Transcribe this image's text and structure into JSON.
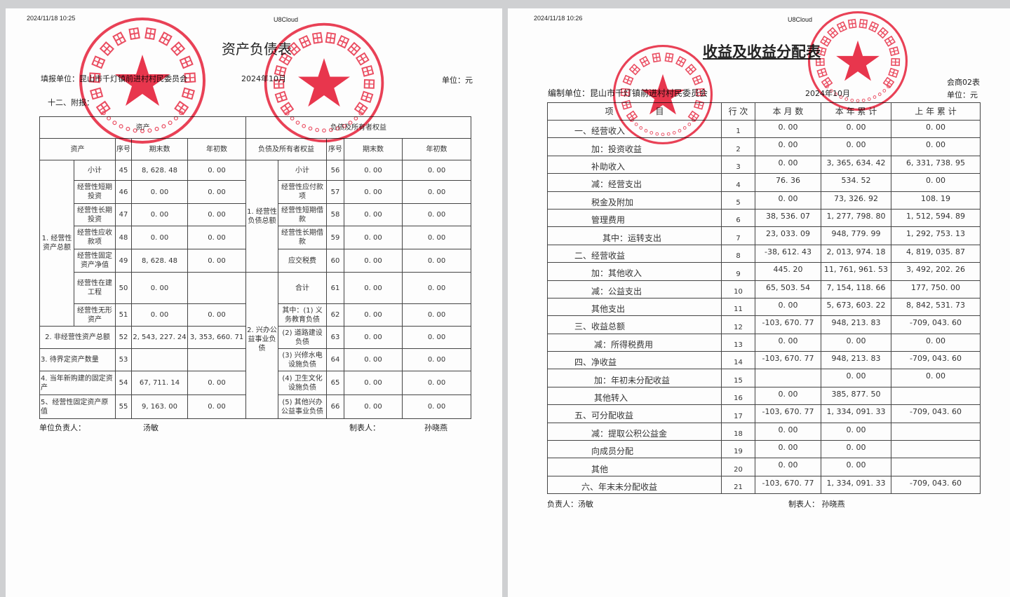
{
  "left_page": {
    "timestamp": "2024/11/18 10:25",
    "app": "U8Cloud",
    "title": "资产负债表",
    "unit_label": "填报单位：昆山市千灯镇前进村村民委员会",
    "period": "2024年10月",
    "currency": "单位：元",
    "section": "十二、附报：",
    "header": {
      "assets_group": "资产",
      "liab_group": "负债及所有者权益",
      "asset_col": "资产",
      "seq": "序号",
      "end": "期末数",
      "begin": "年初数",
      "liab_col": "负债及所有者权益"
    },
    "asset_group1": "1. 经营性资产总额",
    "asset_rows": [
      {
        "label": "小计",
        "seq": "45",
        "end": "8, 628. 48",
        "begin": "0. 00"
      },
      {
        "label": "经营性短期投资",
        "seq": "46",
        "end": "0. 00",
        "begin": "0. 00"
      },
      {
        "label": "经营性长期投资",
        "seq": "47",
        "end": "0. 00",
        "begin": "0. 00"
      },
      {
        "label": "经营性应收款项",
        "seq": "48",
        "end": "0. 00",
        "begin": "0. 00"
      },
      {
        "label": "经营性固定资产净值",
        "seq": "49",
        "end": "8, 628. 48",
        "begin": "0. 00"
      },
      {
        "label": "经营性在建工程",
        "seq": "50",
        "end": "0. 00",
        "begin": ""
      },
      {
        "label": "经营性无形资产",
        "seq": "51",
        "end": "0. 00",
        "begin": "0. 00"
      },
      {
        "label": "2. 非经营性资产总额",
        "seq": "52",
        "end": "2, 543, 227. 24",
        "begin": "3, 353, 660. 71"
      },
      {
        "label": "3. 待界定资产数量",
        "seq": "53",
        "end": "",
        "begin": ""
      },
      {
        "label": "4. 当年新购建的固定资产",
        "seq": "54",
        "end": "67, 711. 14",
        "begin": "0. 00"
      },
      {
        "label": "5、经营性固定资产原值",
        "seq": "55",
        "end": "9, 163. 00",
        "begin": "0. 00"
      }
    ],
    "liab_group1": "1. 经营性负债总额",
    "liab_group2": "2. 兴办公益事业负债",
    "liab_rows": [
      {
        "label": "小计",
        "seq": "56",
        "end": "0. 00",
        "begin": "0. 00"
      },
      {
        "label": "经营性应付款项",
        "seq": "57",
        "end": "0. 00",
        "begin": "0. 00"
      },
      {
        "label": "经营性短期借款",
        "seq": "58",
        "end": "0. 00",
        "begin": "0. 00"
      },
      {
        "label": "经营性长期借款",
        "seq": "59",
        "end": "0. 00",
        "begin": "0. 00"
      },
      {
        "label": "应交税费",
        "seq": "60",
        "end": "0. 00",
        "begin": "0. 00"
      },
      {
        "label": "合计",
        "seq": "61",
        "end": "0. 00",
        "begin": "0. 00"
      },
      {
        "label": "其中：(1) 义务教育负债",
        "seq": "62",
        "end": "0. 00",
        "begin": "0. 00"
      },
      {
        "label": "(2) 道路建设负债",
        "seq": "63",
        "end": "0. 00",
        "begin": "0. 00"
      },
      {
        "label": "(3) 兴修水电设施负债",
        "seq": "64",
        "end": "0. 00",
        "begin": "0. 00"
      },
      {
        "label": "(4) 卫生文化设施负债",
        "seq": "65",
        "end": "0. 00",
        "begin": "0. 00"
      },
      {
        "label": "(5) 其他兴办公益事业负债",
        "seq": "66",
        "end": "0. 00",
        "begin": "0. 00"
      }
    ],
    "footer": {
      "head_label": "单位负责人：",
      "head": "汤敏",
      "preparer_label": "制表人：",
      "preparer": "孙晓燕"
    }
  },
  "right_page": {
    "timestamp": "2024/11/18 10:26",
    "app": "U8Cloud",
    "title": "收益及收益分配表",
    "form_no": "会商02表",
    "unit_label": "编制单位：昆山市千灯镇前进村村民委员会",
    "period": "2024年10月",
    "currency": "单位：元",
    "header": {
      "item": "项　　　　　目",
      "line": "行 次",
      "month": "本 月 数",
      "ytd": "本 年 累 计",
      "last_year": "上 年 累 计"
    },
    "rows": [
      {
        "item": "一、经营收入",
        "indent": 1,
        "line": "1",
        "month": "0. 00",
        "ytd": "0. 00",
        "ly": "0. 00"
      },
      {
        "item": "加：投资收益",
        "indent": 2,
        "line": "2",
        "month": "0. 00",
        "ytd": "0. 00",
        "ly": "0. 00"
      },
      {
        "item": "补助收入",
        "indent": 2,
        "line": "3",
        "month": "0. 00",
        "ytd": "3, 365, 634. 42",
        "ly": "6, 331, 738. 95"
      },
      {
        "item": "减：经营支出",
        "indent": 2,
        "line": "4",
        "month": "76. 36",
        "ytd": "534. 52",
        "ly": "0. 00"
      },
      {
        "item": "税金及附加",
        "indent": 2,
        "line": "5",
        "month": "0. 00",
        "ytd": "73, 326. 92",
        "ly": "108. 19"
      },
      {
        "item": "管理费用",
        "indent": 2,
        "line": "6",
        "month": "38, 536. 07",
        "ytd": "1, 277, 798. 80",
        "ly": "1, 512, 594. 89"
      },
      {
        "item": "其中：运转支出",
        "indent": 3,
        "line": "7",
        "month": "23, 033. 09",
        "ytd": "948, 779. 99",
        "ly": "1, 292, 753. 13"
      },
      {
        "item": "二、经营收益",
        "indent": 1,
        "line": "8",
        "month": "-38, 612. 43",
        "ytd": "2, 013, 974. 18",
        "ly": "4, 819, 035. 87"
      },
      {
        "item": "加：其他收入",
        "indent": 2,
        "line": "9",
        "month": "445. 20",
        "ytd": "11, 761, 961. 53",
        "ly": "3, 492, 202. 26"
      },
      {
        "item": "减：公益支出",
        "indent": 2,
        "line": "10",
        "month": "65, 503. 54",
        "ytd": "7, 154, 118. 66",
        "ly": "177, 750. 00"
      },
      {
        "item": "其他支出",
        "indent": 2,
        "line": "11",
        "month": "0. 00",
        "ytd": "5, 673, 603. 22",
        "ly": "8, 842, 531. 73"
      },
      {
        "item": "三、收益总额",
        "indent": 1,
        "line": "12",
        "month": "-103, 670. 77",
        "ytd": "948, 213. 83",
        "ly": "-709, 043. 60"
      },
      {
        "item": "减：所得税费用",
        "indent": 4,
        "line": "13",
        "month": "0. 00",
        "ytd": "0. 00",
        "ly": "0. 00"
      },
      {
        "item": "四、净收益",
        "indent": 1,
        "line": "14",
        "month": "-103, 670. 77",
        "ytd": "948, 213. 83",
        "ly": "-709, 043. 60"
      },
      {
        "item": "加：年初未分配收益",
        "indent": 4,
        "line": "15",
        "month": "",
        "ytd": "0. 00",
        "ly": "0. 00"
      },
      {
        "item": "其他转入",
        "indent": 4,
        "line": "16",
        "month": "0. 00",
        "ytd": "385, 877. 50",
        "ly": ""
      },
      {
        "item": "五、可分配收益",
        "indent": 1,
        "line": "17",
        "month": "-103, 670. 77",
        "ytd": "1, 334, 091. 33",
        "ly": "-709, 043. 60"
      },
      {
        "item": "减：提取公积公益金",
        "indent": 2,
        "line": "18",
        "month": "0. 00",
        "ytd": "0. 00",
        "ly": ""
      },
      {
        "item": "向成员分配",
        "indent": 2,
        "line": "19",
        "month": "0. 00",
        "ytd": "0. 00",
        "ly": ""
      },
      {
        "item": "其他",
        "indent": 2,
        "line": "20",
        "month": "0. 00",
        "ytd": "0. 00",
        "ly": ""
      },
      {
        "item": "六、年末未分配收益",
        "indent": 0,
        "line": "21",
        "month": "-103, 670. 77",
        "ytd": "1, 334, 091. 33",
        "ly": "-709, 043. 60"
      }
    ],
    "footer": {
      "head": "负责人：汤敏",
      "preparer": "制表人：  孙晓燕"
    }
  },
  "stamps": {
    "committee": {
      "text": "昆山市千灯镇前进村村民委员会",
      "code": "3205830963329"
    },
    "supervision": {
      "text": "昆山市千灯镇前进村村务监督委员会",
      "code": "3205830470382"
    },
    "color": "#e8203a"
  }
}
